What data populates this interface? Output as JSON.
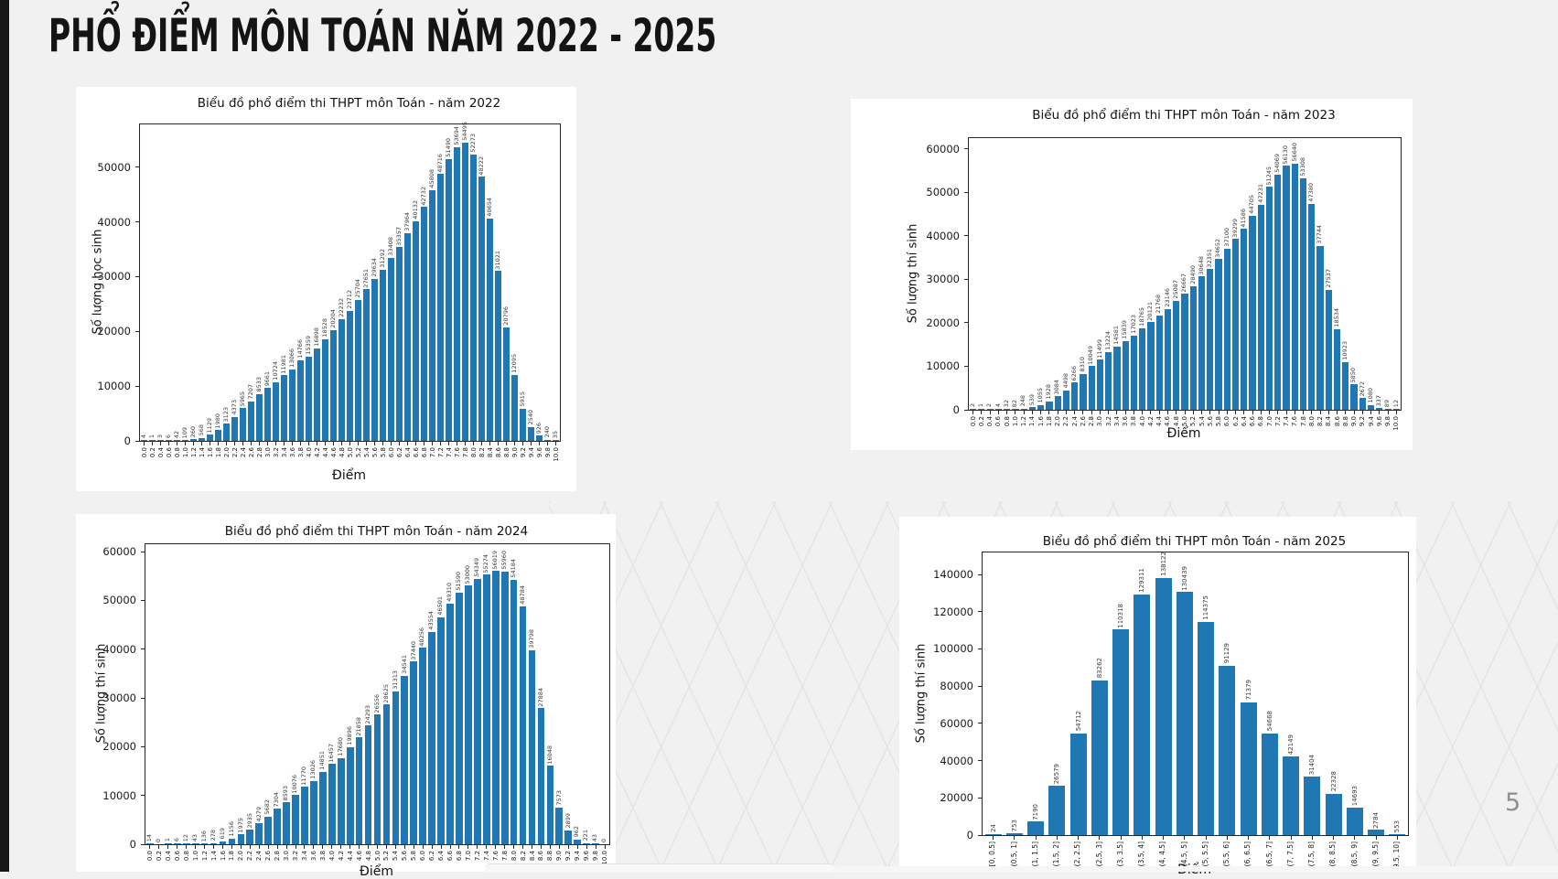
{
  "slide": {
    "title": "PHỔ ĐIỂM MÔN TOÁN NĂM 2022 - 2025",
    "page_number": "5"
  },
  "chart_data": [
    {
      "id": "toan-2022",
      "type": "bar",
      "title": "Biểu đồ phổ điểm thi THPT môn Toán - năm 2022",
      "xlabel": "Điểm",
      "ylabel": "Số lượng học sinh",
      "bar_color": "#1f77b4",
      "legend": null,
      "grid": false,
      "yticks": [
        0,
        10000,
        20000,
        30000,
        40000,
        50000
      ],
      "ylim": [
        0,
        57800
      ],
      "categories": [
        "0.0",
        "0.2",
        "0.4",
        "0.6",
        "0.8",
        "1.0",
        "1.2",
        "1.4",
        "1.6",
        "1.8",
        "2.0",
        "2.2",
        "2.4",
        "2.6",
        "2.8",
        "3.0",
        "3.2",
        "3.4",
        "3.6",
        "3.8",
        "4.0",
        "4.2",
        "4.4",
        "4.6",
        "4.8",
        "5.0",
        "5.2",
        "5.4",
        "5.6",
        "5.8",
        "6.0",
        "6.2",
        "6.4",
        "6.6",
        "6.8",
        "7.0",
        "7.2",
        "7.4",
        "7.6",
        "7.8",
        "8.0",
        "8.2",
        "8.4",
        "8.6",
        "8.8",
        "9.0",
        "9.2",
        "9.4",
        "9.6",
        "9.8",
        "10.0"
      ],
      "values": [
        4,
        1,
        3,
        6,
        42,
        109,
        260,
        568,
        1129,
        1980,
        3123,
        4373,
        5965,
        7207,
        8533,
        9661,
        10724,
        11981,
        13066,
        14766,
        15359,
        16898,
        18528,
        20204,
        22232,
        23712,
        25704,
        27651,
        29634,
        31292,
        33408,
        35357,
        37964,
        40132,
        42732,
        45808,
        48716,
        51490,
        53694,
        54495,
        52273,
        48222,
        40654,
        31021,
        20796,
        12095,
        5915,
        2540,
        926,
        240,
        35
      ]
    },
    {
      "id": "toan-2023",
      "type": "bar",
      "title": "Biểu đồ phổ điểm thi THPT môn Toán - năm 2023",
      "xlabel": "Điểm",
      "ylabel": "Số lượng thí sinh",
      "bar_color": "#1f77b4",
      "legend": null,
      "grid": false,
      "yticks": [
        0,
        10000,
        20000,
        30000,
        40000,
        50000,
        60000
      ],
      "ylim": [
        0,
        62500
      ],
      "categories": [
        "0.0",
        "0.2",
        "0.4",
        "0.6",
        "0.8",
        "1.0",
        "1.2",
        "1.4",
        "1.6",
        "1.8",
        "2.0",
        "2.2",
        "2.4",
        "2.6",
        "2.8",
        "3.0",
        "3.2",
        "3.4",
        "3.6",
        "3.8",
        "4.0",
        "4.2",
        "4.4",
        "4.6",
        "4.8",
        "5.0",
        "5.2",
        "5.4",
        "5.6",
        "5.8",
        "6.0",
        "6.2",
        "6.4",
        "6.6",
        "6.8",
        "7.0",
        "7.2",
        "7.4",
        "7.6",
        "7.8",
        "8.0",
        "8.2",
        "8.4",
        "8.6",
        "8.8",
        "9.0",
        "9.2",
        "9.4",
        "9.6",
        "9.8",
        "10.0"
      ],
      "values": [
        2,
        1,
        2,
        4,
        32,
        82,
        248,
        539,
        1055,
        1928,
        3084,
        4498,
        6266,
        8310,
        10049,
        11499,
        13224,
        14581,
        15839,
        17023,
        18765,
        20121,
        21768,
        23146,
        25087,
        26667,
        28490,
        30648,
        32351,
        34652,
        37100,
        39299,
        41586,
        44705,
        47231,
        51245,
        54069,
        56130,
        56640,
        53308,
        47380,
        37744,
        27537,
        18534,
        10923,
        5850,
        2672,
        1080,
        337,
        89,
        12
      ]
    },
    {
      "id": "toan-2024",
      "type": "bar",
      "title": "Biểu đồ phổ điểm thi THPT môn Toán - năm 2024",
      "xlabel": "Điểm",
      "ylabel": "Số lượng thí sinh",
      "bar_color": "#1f77b4",
      "legend": null,
      "grid": false,
      "yticks": [
        0,
        10000,
        20000,
        30000,
        40000,
        50000,
        60000
      ],
      "ylim": [
        0,
        61500
      ],
      "categories": [
        "0.0",
        "0.2",
        "0.4",
        "0.6",
        "0.8",
        "1.0",
        "1.2",
        "1.4",
        "1.6",
        "1.8",
        "2.0",
        "2.2",
        "2.4",
        "2.6",
        "2.8",
        "3.0",
        "3.2",
        "3.4",
        "3.6",
        "3.8",
        "4.0",
        "4.2",
        "4.4",
        "4.6",
        "4.8",
        "5.0",
        "5.2",
        "5.4",
        "5.6",
        "5.8",
        "6.0",
        "6.2",
        "6.4",
        "6.6",
        "6.8",
        "7.0",
        "7.2",
        "7.4",
        "7.6",
        "7.8",
        "8.0",
        "8.2",
        "8.4",
        "8.6",
        "8.8",
        "9.0",
        "9.2",
        "9.4",
        "9.6",
        "9.8",
        "10.0"
      ],
      "values": [
        14,
        0,
        1,
        6,
        12,
        43,
        136,
        278,
        619,
        1156,
        1975,
        2935,
        4279,
        5682,
        7304,
        8593,
        10076,
        11770,
        13026,
        14851,
        16457,
        17680,
        19896,
        21858,
        24293,
        26556,
        28625,
        31313,
        34541,
        37440,
        40256,
        43554,
        46501,
        49310,
        51590,
        53000,
        54349,
        55274,
        56019,
        55960,
        54184,
        48784,
        39798,
        27884,
        16048,
        7573,
        2899,
        962,
        221,
        43,
        0
      ]
    },
    {
      "id": "toan-2025",
      "type": "bar",
      "title": "Biểu đồ phổ điểm thi THPT môn Toán - năm 2025",
      "xlabel": "Điểm",
      "ylabel": "Số lượng thí sinh",
      "bar_color": "#1f77b4",
      "legend": null,
      "grid": false,
      "yticks": [
        0,
        20000,
        40000,
        60000,
        80000,
        100000,
        120000,
        140000
      ],
      "ylim": [
        0,
        151800
      ],
      "categories": [
        "[0, 0.5]",
        "(0.5, 1]",
        "(1, 1.5]",
        "(1.5, 2]",
        "(2, 2.5]",
        "(2.5, 3]",
        "(3, 3.5]",
        "(3.5, 4]",
        "(4, 4.5]",
        "(4.5, 5]",
        "(5, 5.5]",
        "(5.5, 6]",
        "(6, 6.5]",
        "(6.5, 7]",
        "(7, 7.5]",
        "(7.5, 8]",
        "(8, 8.5]",
        "(8.5, 9]",
        "(9, 9.5]",
        "(9.5, 10]"
      ],
      "values": [
        24,
        753,
        7190,
        26579,
        54712,
        83262,
        110318,
        129311,
        138122,
        130439,
        114375,
        91129,
        71379,
        54668,
        42149,
        31404,
        22328,
        14693,
        2784,
        553
      ]
    }
  ]
}
